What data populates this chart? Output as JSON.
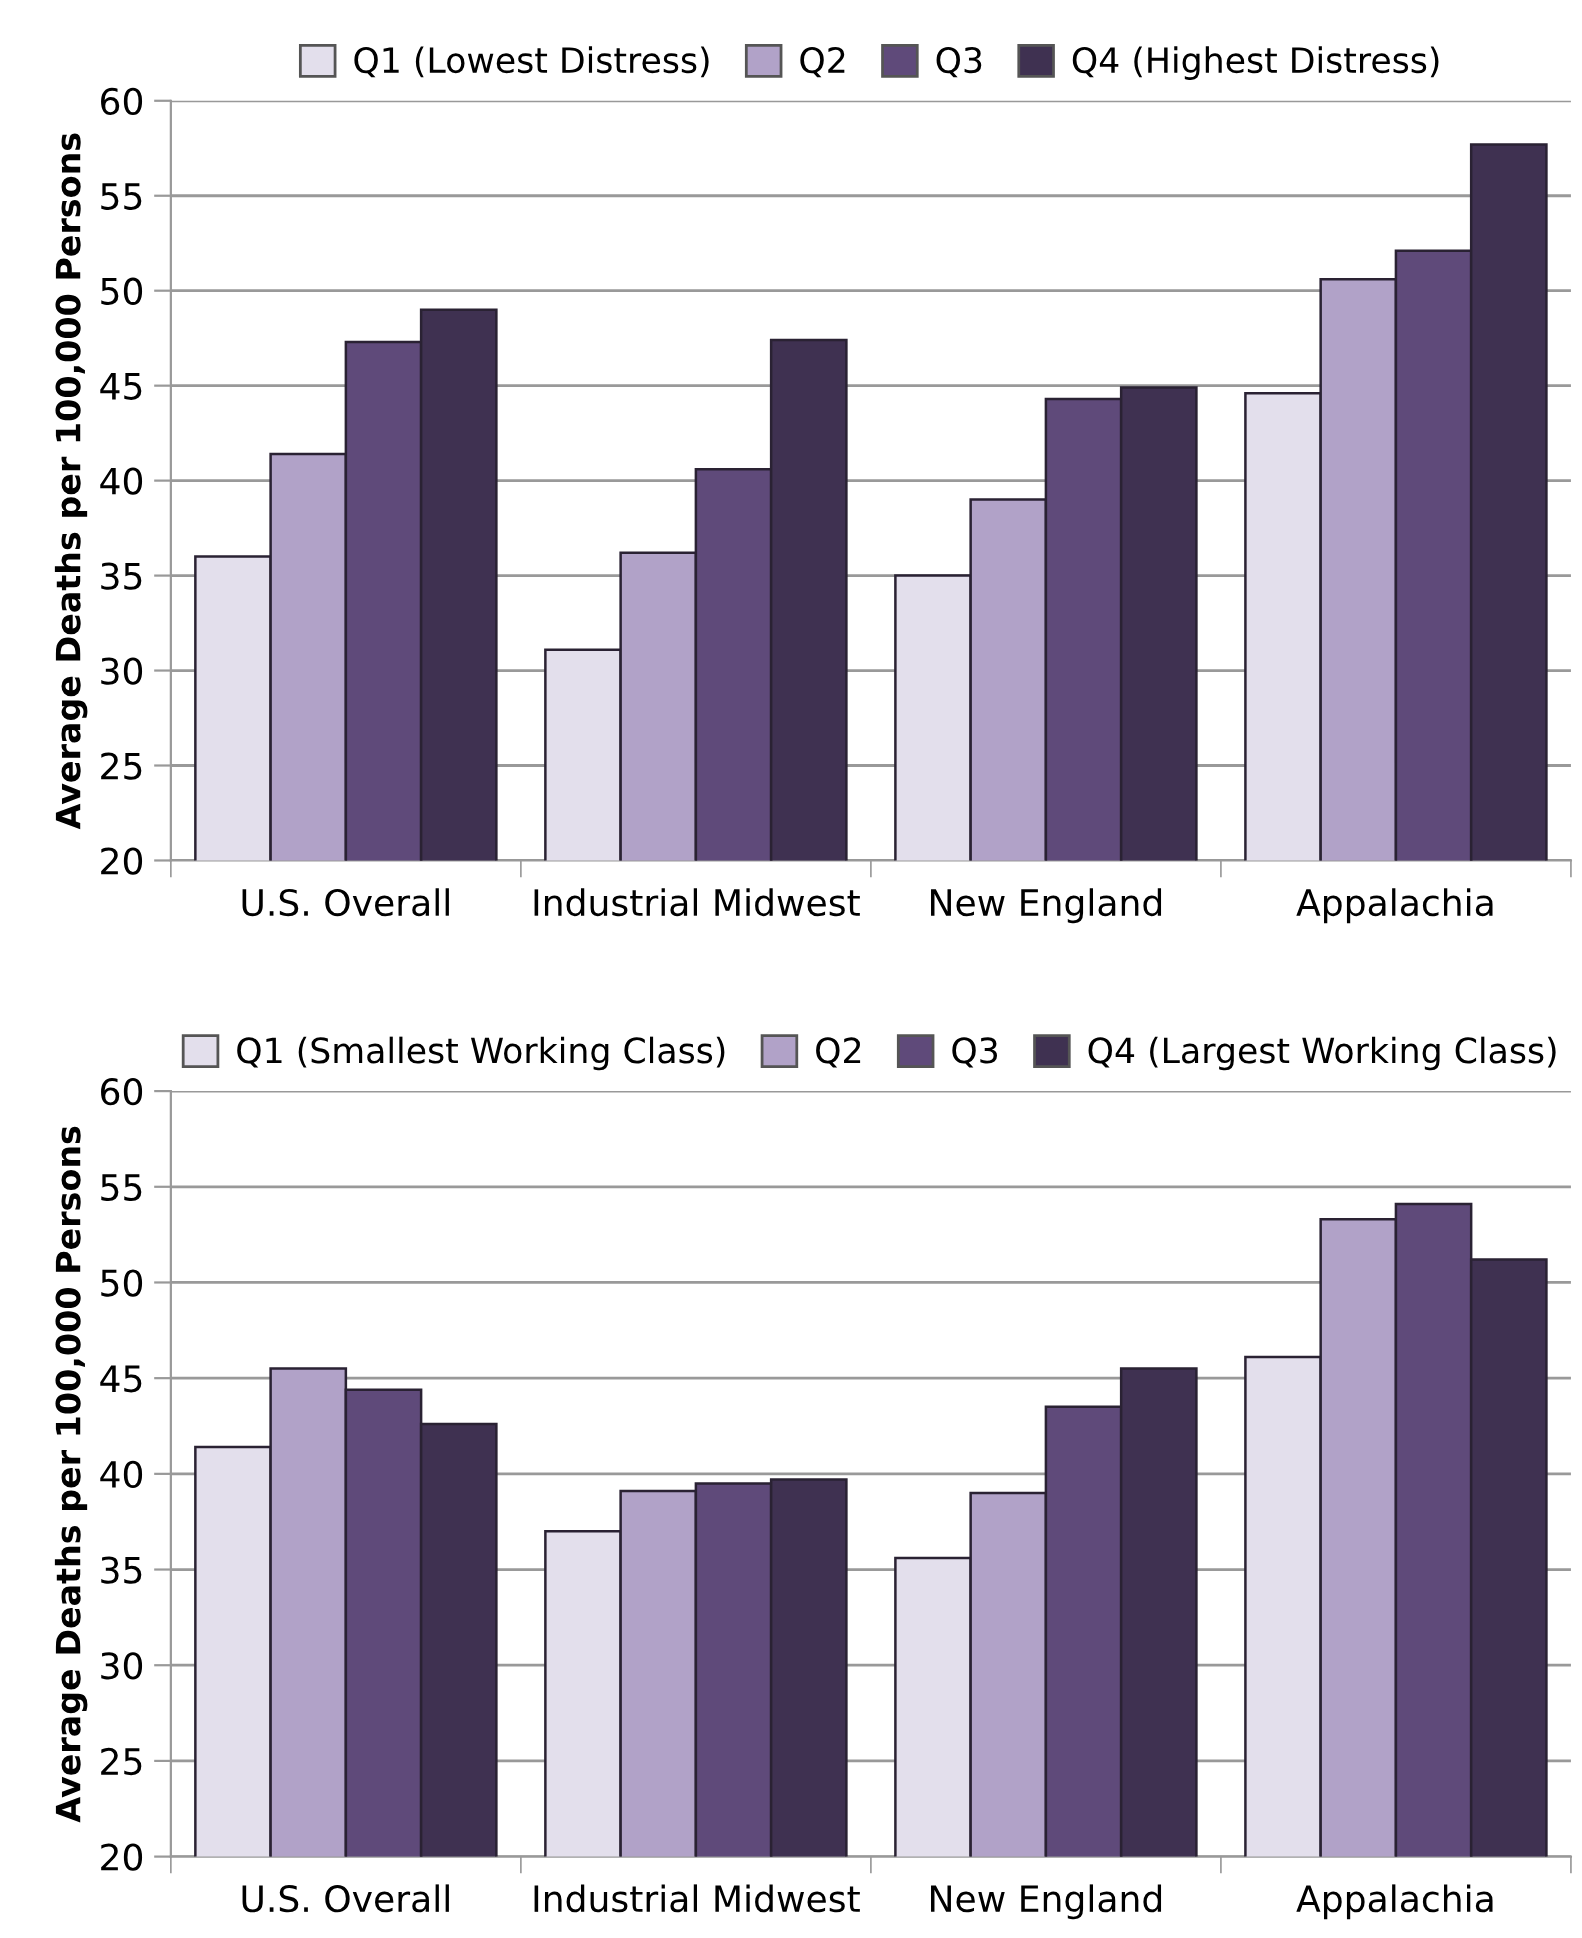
{
  "chart_data": [
    {
      "type": "bar",
      "categories": [
        "U.S. Overall",
        "Industrial Midwest",
        "New England",
        "Appalachia"
      ],
      "ylabel": "Average Deaths per 100,000 Persons",
      "ylim": [
        20,
        60
      ],
      "yticks": [
        20,
        25,
        30,
        35,
        40,
        45,
        50,
        55,
        60
      ],
      "grid": "y",
      "legend": "top",
      "series": [
        {
          "name": "Q1 (Lowest Distress)",
          "color": "#e3dfec",
          "values": [
            36.0,
            31.1,
            35.0,
            44.6
          ]
        },
        {
          "name": "Q2",
          "color": "#b1a2c8",
          "values": [
            41.4,
            36.2,
            39.0,
            50.6
          ]
        },
        {
          "name": "Q3",
          "color": "#5f4a7a",
          "values": [
            47.3,
            40.6,
            44.3,
            52.1
          ]
        },
        {
          "name": "Q4 (Highest Distress)",
          "color": "#3f3151",
          "values": [
            49.0,
            47.4,
            44.9,
            57.7
          ]
        }
      ]
    },
    {
      "type": "bar",
      "categories": [
        "U.S. Overall",
        "Industrial Midwest",
        "New England",
        "Appalachia"
      ],
      "ylabel": "Average Deaths per 100,000 Persons",
      "ylim": [
        20,
        60
      ],
      "yticks": [
        20,
        25,
        30,
        35,
        40,
        45,
        50,
        55,
        60
      ],
      "grid": "y",
      "legend": "top",
      "series": [
        {
          "name": "Q1 (Smallest Working Class)",
          "color": "#e3dfec",
          "values": [
            41.4,
            37.0,
            35.6,
            46.1
          ]
        },
        {
          "name": "Q2",
          "color": "#b1a2c8",
          "values": [
            45.5,
            39.1,
            39.0,
            53.3
          ]
        },
        {
          "name": "Q3",
          "color": "#5f4a7a",
          "values": [
            44.4,
            39.5,
            43.5,
            54.1
          ]
        },
        {
          "name": "Q4 (Largest Working Class)",
          "color": "#3f3151",
          "values": [
            42.6,
            39.7,
            45.5,
            51.2
          ]
        }
      ]
    }
  ]
}
